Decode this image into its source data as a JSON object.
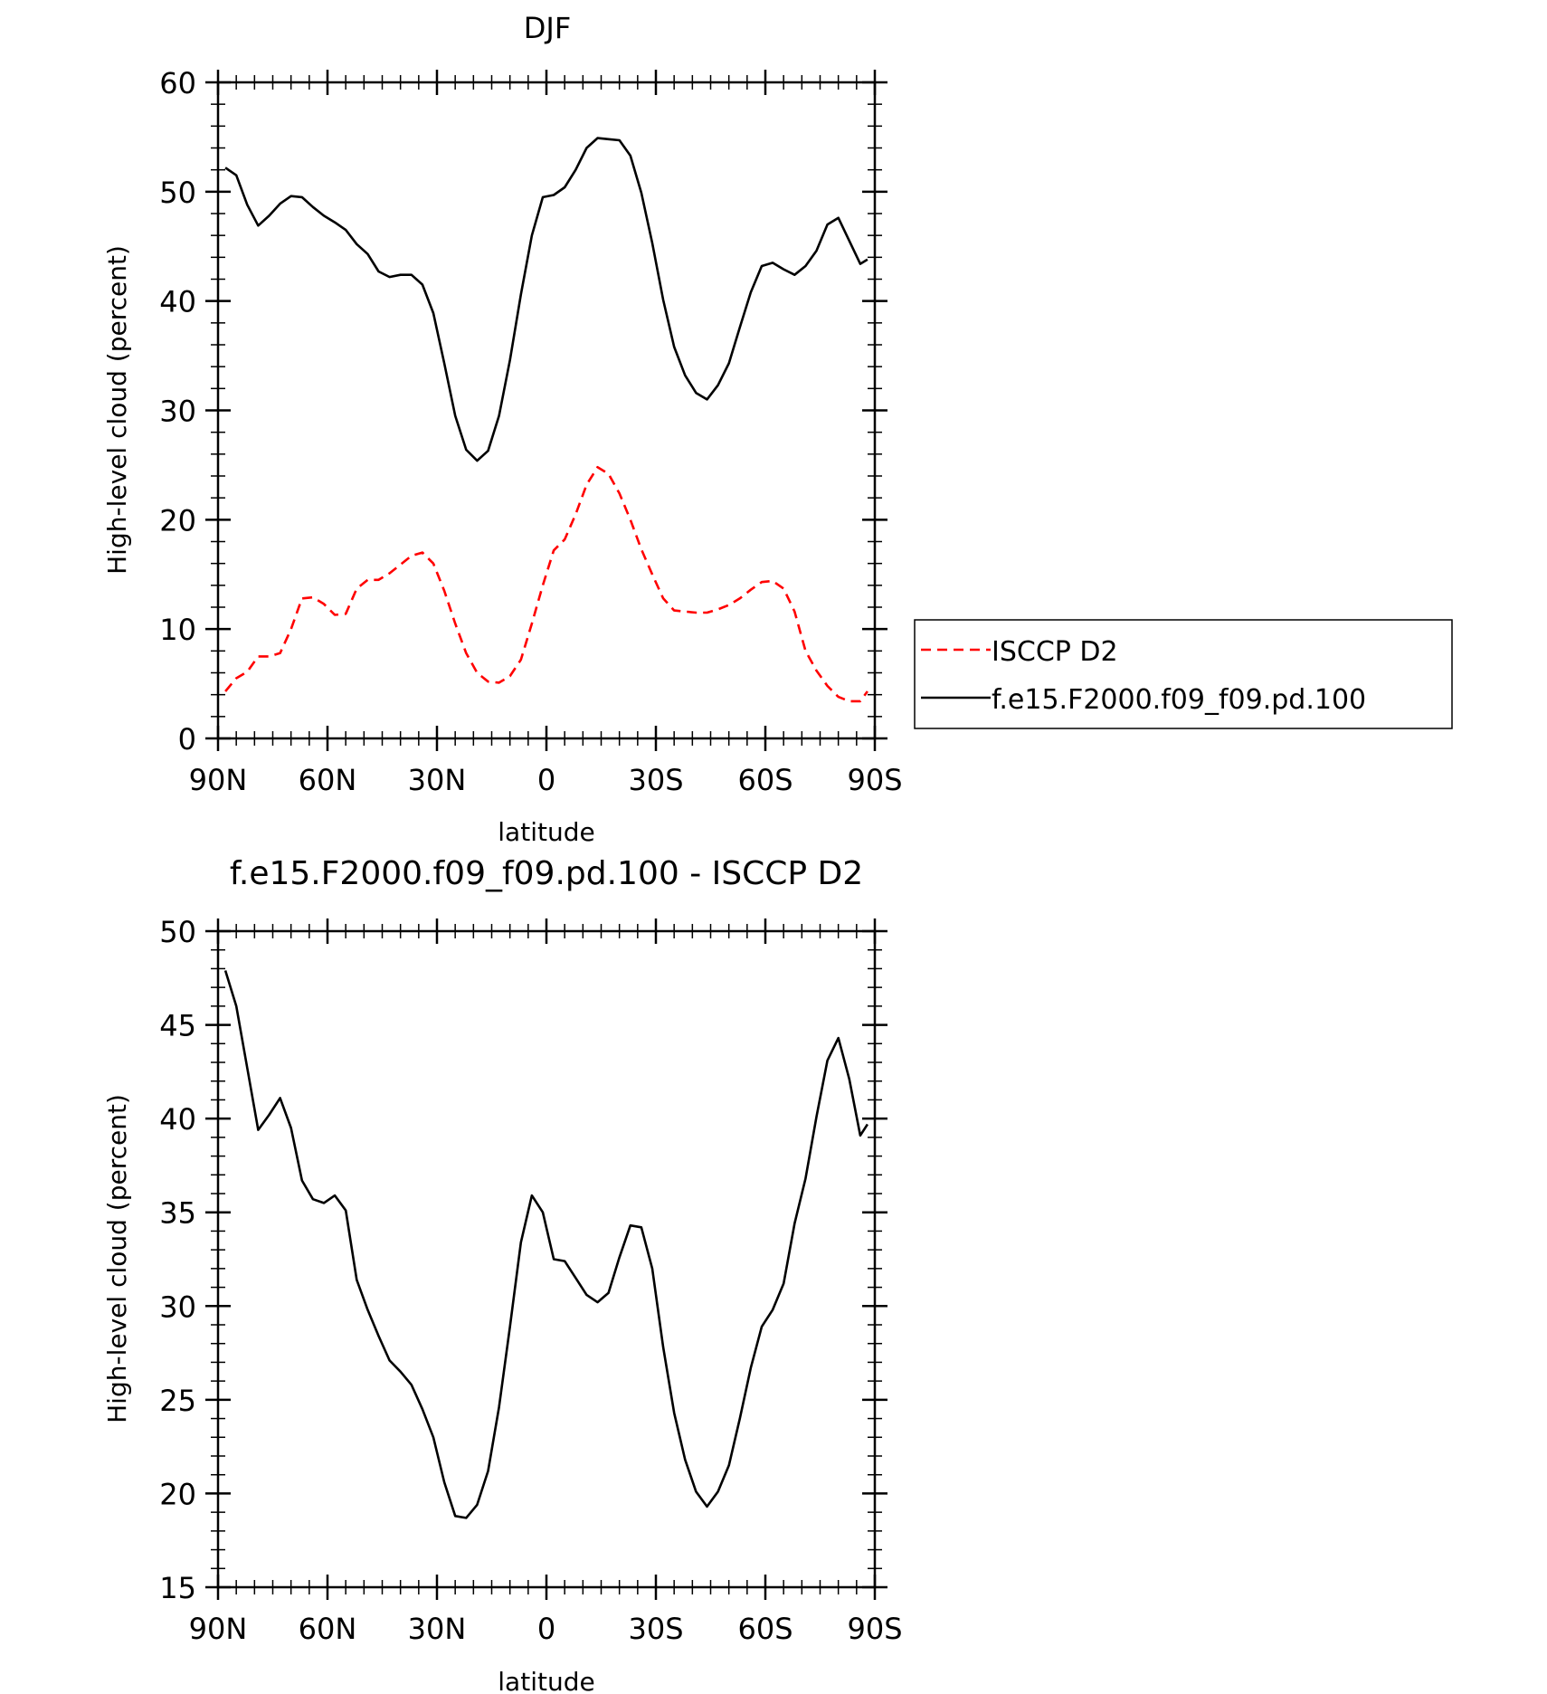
{
  "chart_data": [
    {
      "type": "line",
      "title": "DJF",
      "xlabel": "latitude",
      "ylabel": "High-level cloud (percent)",
      "xlim": [
        90,
        -90
      ],
      "ylim": [
        0,
        60
      ],
      "x_ticks": [
        {
          "value": 90,
          "label": "90N"
        },
        {
          "value": 60,
          "label": "60N"
        },
        {
          "value": 30,
          "label": "30N"
        },
        {
          "value": 0,
          "label": "0"
        },
        {
          "value": -30,
          "label": "30S"
        },
        {
          "value": -60,
          "label": "60S"
        },
        {
          "value": -90,
          "label": "90S"
        }
      ],
      "y_ticks": [
        0,
        10,
        20,
        30,
        40,
        50,
        60
      ],
      "legend_position": "right",
      "series": [
        {
          "name": "ISCCP D2",
          "color": "#ff0000",
          "dash": "dashed",
          "x": [
            88,
            85,
            82,
            79,
            76,
            73,
            70,
            67,
            64,
            61,
            58,
            55,
            52,
            49,
            46,
            43,
            40,
            37,
            34,
            31,
            28,
            25,
            22,
            19,
            16,
            13,
            10,
            7,
            4,
            1,
            -2,
            -5,
            -8,
            -11,
            -14,
            -17,
            -20,
            -23,
            -26,
            -29,
            -32,
            -35,
            -38,
            -41,
            -44,
            -47,
            -50,
            -53,
            -56,
            -59,
            -62,
            -65,
            -68,
            -71,
            -74,
            -77,
            -80,
            -83,
            -86,
            -88
          ],
          "values": [
            4.3,
            5.5,
            6.1,
            7.5,
            7.5,
            7.8,
            10.0,
            12.8,
            12.9,
            12.3,
            11.3,
            11.4,
            13.7,
            14.5,
            14.5,
            15.1,
            15.9,
            16.7,
            17.0,
            16.0,
            13.5,
            10.5,
            7.8,
            6.0,
            5.2,
            5.1,
            5.7,
            7.2,
            10.5,
            14.0,
            17.2,
            18.2,
            20.5,
            23.2,
            24.8,
            24.2,
            22.4,
            20.0,
            17.3,
            15.0,
            12.8,
            11.7,
            11.6,
            11.5,
            11.5,
            11.8,
            12.2,
            12.8,
            13.6,
            14.3,
            14.4,
            13.7,
            11.6,
            8.0,
            6.2,
            4.8,
            3.8,
            3.4,
            3.4,
            4.3
          ]
        },
        {
          "name": "f.e15.F2000.f09_f09.pd.100",
          "color": "#000000",
          "dash": "solid",
          "x": [
            88,
            85,
            82,
            79,
            76,
            73,
            70,
            67,
            64,
            61,
            58,
            55,
            52,
            49,
            46,
            43,
            40,
            37,
            34,
            31,
            28,
            25,
            22,
            19,
            16,
            13,
            10,
            7,
            4,
            1,
            -2,
            -5,
            -8,
            -11,
            -14,
            -17,
            -20,
            -23,
            -26,
            -29,
            -32,
            -35,
            -38,
            -41,
            -44,
            -47,
            -50,
            -53,
            -56,
            -59,
            -62,
            -65,
            -68,
            -71,
            -74,
            -77,
            -80,
            -83,
            -86,
            -88
          ],
          "values": [
            52.2,
            51.5,
            48.8,
            46.9,
            47.8,
            48.9,
            49.6,
            49.5,
            48.6,
            47.8,
            47.2,
            46.5,
            45.2,
            44.3,
            42.7,
            42.2,
            42.4,
            42.4,
            41.5,
            38.9,
            34.3,
            29.5,
            26.4,
            25.4,
            26.3,
            29.5,
            34.6,
            40.6,
            46.0,
            49.5,
            49.7,
            50.4,
            52.0,
            54.0,
            54.9,
            54.8,
            54.7,
            53.3,
            49.9,
            45.3,
            40.1,
            35.8,
            33.2,
            31.6,
            31.0,
            32.3,
            34.3,
            37.6,
            40.8,
            43.2,
            43.5,
            42.9,
            42.4,
            43.2,
            44.6,
            47.0,
            47.6,
            45.5,
            43.4,
            43.8
          ]
        }
      ]
    },
    {
      "type": "line",
      "title": "f.e15.F2000.f09_f09.pd.100 - ISCCP D2",
      "xlabel": "latitude",
      "ylabel": "High-level cloud (percent)",
      "xlim": [
        90,
        -90
      ],
      "ylim": [
        15,
        50
      ],
      "x_ticks": [
        {
          "value": 90,
          "label": "90N"
        },
        {
          "value": 60,
          "label": "60N"
        },
        {
          "value": 30,
          "label": "30N"
        },
        {
          "value": 0,
          "label": "0"
        },
        {
          "value": -30,
          "label": "30S"
        },
        {
          "value": -60,
          "label": "60S"
        },
        {
          "value": -90,
          "label": "90S"
        }
      ],
      "y_ticks": [
        15,
        20,
        25,
        30,
        35,
        40,
        45,
        50
      ],
      "series": [
        {
          "color": "#000000",
          "dash": "solid",
          "x": [
            88,
            85,
            82,
            79,
            76,
            73,
            70,
            67,
            64,
            61,
            58,
            55,
            52,
            49,
            46,
            43,
            40,
            37,
            34,
            31,
            28,
            25,
            22,
            19,
            16,
            13,
            10,
            7,
            4,
            1,
            -2,
            -5,
            -8,
            -11,
            -14,
            -17,
            -20,
            -23,
            -26,
            -29,
            -32,
            -35,
            -38,
            -41,
            -44,
            -47,
            -50,
            -53,
            -56,
            -59,
            -62,
            -65,
            -68,
            -71,
            -74,
            -77,
            -80,
            -83,
            -86,
            -88
          ],
          "values": [
            47.9,
            46.0,
            42.7,
            39.4,
            40.2,
            41.1,
            39.5,
            36.7,
            35.7,
            35.5,
            35.9,
            35.1,
            31.4,
            29.8,
            28.4,
            27.1,
            26.5,
            25.8,
            24.5,
            23.0,
            20.6,
            18.8,
            18.7,
            19.4,
            21.2,
            24.6,
            28.9,
            33.4,
            35.9,
            35.0,
            32.5,
            32.4,
            31.5,
            30.6,
            30.2,
            30.7,
            32.6,
            34.3,
            34.2,
            32.0,
            27.8,
            24.3,
            21.8,
            20.1,
            19.3,
            20.1,
            21.5,
            24.0,
            26.7,
            28.9,
            29.8,
            31.2,
            34.4,
            36.8,
            40.1,
            43.1,
            44.3,
            42.1,
            39.1,
            39.7
          ]
        }
      ]
    }
  ]
}
